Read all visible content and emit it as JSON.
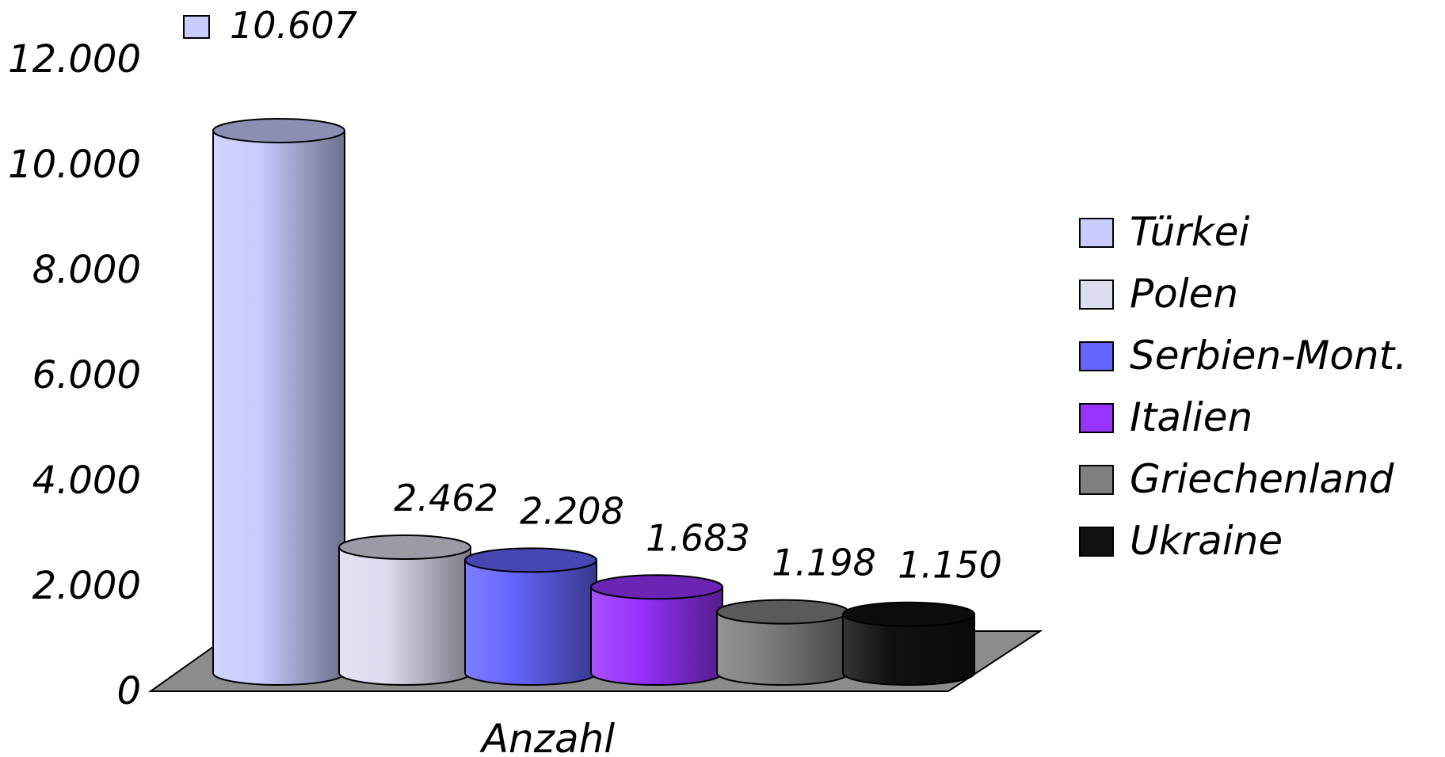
{
  "chart_data": {
    "type": "bar",
    "style": "3d-cylinder",
    "title": "",
    "xlabel": "Anzahl",
    "ylabel": "",
    "ylim": [
      0,
      12000
    ],
    "y_ticks": [
      {
        "value": 0,
        "label": "0"
      },
      {
        "value": 2000,
        "label": "2.000"
      },
      {
        "value": 4000,
        "label": "4.000"
      },
      {
        "value": 6000,
        "label": "6.000"
      },
      {
        "value": 8000,
        "label": "8.000"
      },
      {
        "value": 10000,
        "label": "10.000"
      },
      {
        "value": 12000,
        "label": "12.000"
      }
    ],
    "categories": [
      "Anzahl"
    ],
    "series": [
      {
        "name": "Türkei",
        "values": [
          10607
        ],
        "label": "10.607",
        "color": "#C8CCFF",
        "label_boxed": true
      },
      {
        "name": "Polen",
        "values": [
          2462
        ],
        "label": "2.462",
        "color": "#DDDDF0",
        "label_boxed": false
      },
      {
        "name": "Serbien-Mont.",
        "values": [
          2208
        ],
        "label": "2.208",
        "color": "#6666FF",
        "label_boxed": false
      },
      {
        "name": "Italien",
        "values": [
          1683
        ],
        "label": "1.683",
        "color": "#9933FF",
        "label_boxed": false
      },
      {
        "name": "Griechenland",
        "values": [
          1198
        ],
        "label": "1.198",
        "color": "#808080",
        "label_boxed": false
      },
      {
        "name": "Ukraine",
        "values": [
          1150
        ],
        "label": "1.150",
        "color": "#111111",
        "label_boxed": false
      }
    ],
    "floor_color": "#8C8C8C",
    "grid": false,
    "legend_position": "right"
  }
}
